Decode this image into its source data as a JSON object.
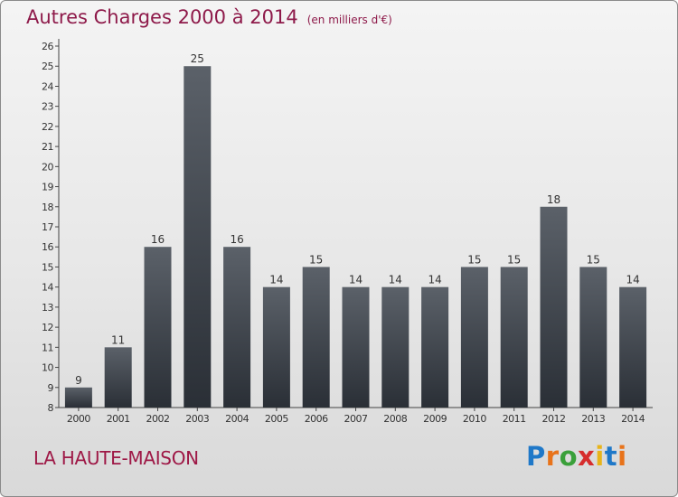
{
  "header": {
    "title": "Autres Charges 2000 à 2014",
    "unit": "(en milliers d'€)"
  },
  "footer": {
    "place": "LA HAUTE-MAISON",
    "logo": "Proxiti"
  },
  "colors": {
    "title": "#8e1a4a",
    "bar": "#3f464f",
    "place": "#9e1846"
  },
  "chart_data": {
    "type": "bar",
    "title": "Autres Charges 2000 à 2014",
    "subtitle": "(en milliers d'€)",
    "xlabel": "",
    "ylabel": "",
    "categories": [
      "2000",
      "2001",
      "2002",
      "2003",
      "2004",
      "2005",
      "2006",
      "2007",
      "2008",
      "2009",
      "2010",
      "2011",
      "2012",
      "2013",
      "2014"
    ],
    "values": [
      9,
      11,
      16,
      25,
      16,
      14,
      15,
      14,
      14,
      14,
      15,
      15,
      18,
      15,
      14
    ],
    "ylim": [
      8,
      26
    ],
    "yticks": [
      8,
      9,
      10,
      11,
      12,
      13,
      14,
      15,
      16,
      17,
      18,
      19,
      20,
      21,
      22,
      23,
      24,
      25,
      26
    ],
    "grid": false,
    "legend": "none"
  }
}
